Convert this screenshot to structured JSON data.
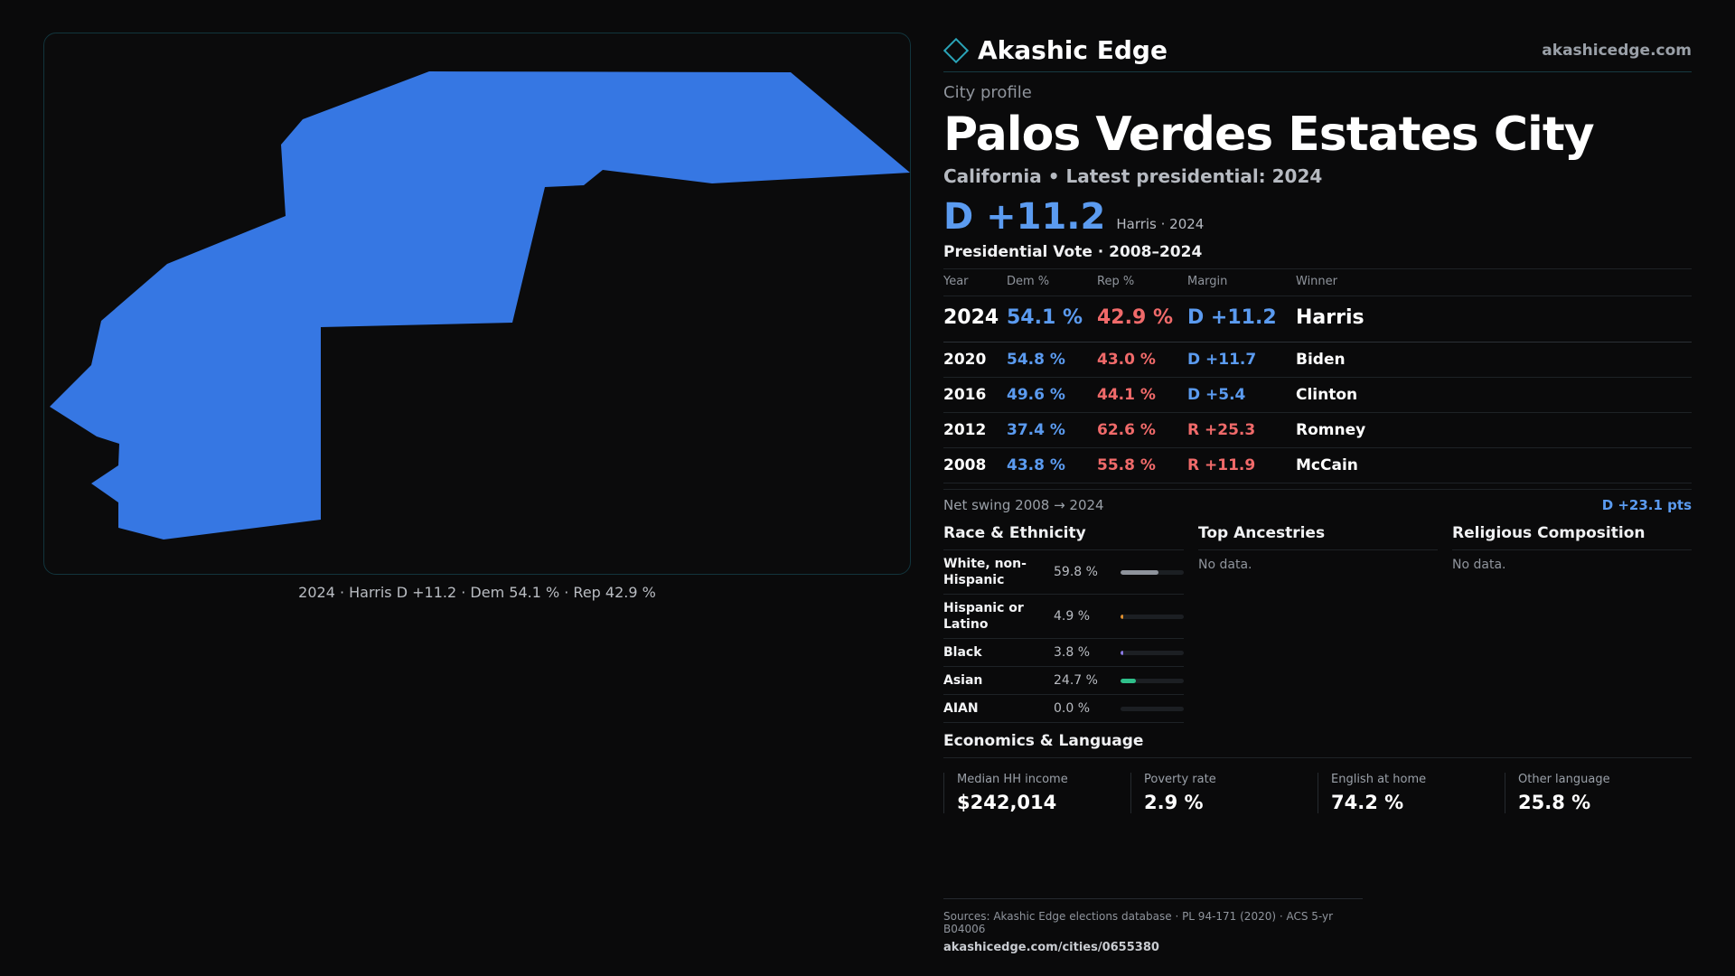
{
  "brand": {
    "name": "Akashic Edge",
    "url": "akashicedge.com"
  },
  "header": {
    "kicker": "City profile",
    "title": "Palos Verdes Estates City",
    "subtitle": "California • Latest presidential: 2024",
    "margin": "D +11.2",
    "margin_note": "Harris · 2024"
  },
  "map": {
    "fill_color": "#3677e3",
    "caption": "2024 · Harris D +11.2 · Dem 54.1 % · Rep 42.9 %"
  },
  "votes": {
    "title": "Presidential Vote · 2008–2024",
    "headers": [
      "Year",
      "Dem %",
      "Rep %",
      "Margin",
      "Winner"
    ],
    "rows": [
      {
        "year": "2024",
        "dem": "54.1 %",
        "rep": "42.9 %",
        "margin": "D +11.2",
        "party": "D",
        "winner": "Harris"
      },
      {
        "year": "2020",
        "dem": "54.8 %",
        "rep": "43.0 %",
        "margin": "D +11.7",
        "party": "D",
        "winner": "Biden"
      },
      {
        "year": "2016",
        "dem": "49.6 %",
        "rep": "44.1 %",
        "margin": "D +5.4",
        "party": "D",
        "winner": "Clinton"
      },
      {
        "year": "2012",
        "dem": "37.4 %",
        "rep": "62.6 %",
        "margin": "R +25.3",
        "party": "R",
        "winner": "Romney"
      },
      {
        "year": "2008",
        "dem": "43.8 %",
        "rep": "55.8 %",
        "margin": "R +11.9",
        "party": "R",
        "winner": "McCain"
      }
    ],
    "swing_label": "Net swing 2008 → 2024",
    "swing_value": "D +23.1 pts"
  },
  "race": {
    "title": "Race & Ethnicity",
    "rows": [
      {
        "label": "White, non-Hispanic",
        "pct": "59.8 %",
        "value": 59.8,
        "color": "#8e939c"
      },
      {
        "label": "Hispanic or Latino",
        "pct": "4.9 %",
        "value": 4.9,
        "color": "#e0902f"
      },
      {
        "label": "Black",
        "pct": "3.8 %",
        "value": 3.8,
        "color": "#8b7ae6"
      },
      {
        "label": "Asian",
        "pct": "24.7 %",
        "value": 24.7,
        "color": "#2fbf8a"
      },
      {
        "label": "AIAN",
        "pct": "0.0 %",
        "value": 0.0,
        "color": "#d06060"
      }
    ]
  },
  "ancestries": {
    "title": "Top Ancestries",
    "empty": "No data."
  },
  "religion": {
    "title": "Religious Composition",
    "empty": "No data."
  },
  "economics": {
    "title": "Economics & Language",
    "items": [
      {
        "label": "Median HH income",
        "value": "$242,014"
      },
      {
        "label": "Poverty rate",
        "value": "2.9 %"
      },
      {
        "label": "English at home",
        "value": "74.2 %"
      },
      {
        "label": "Other language",
        "value": "25.8 %"
      }
    ]
  },
  "footer": {
    "sources": "Sources: Akashic Edge elections database · PL 94-171 (2020) · ACS 5-yr B04006",
    "url": "akashicedge.com/cities/0655380"
  }
}
